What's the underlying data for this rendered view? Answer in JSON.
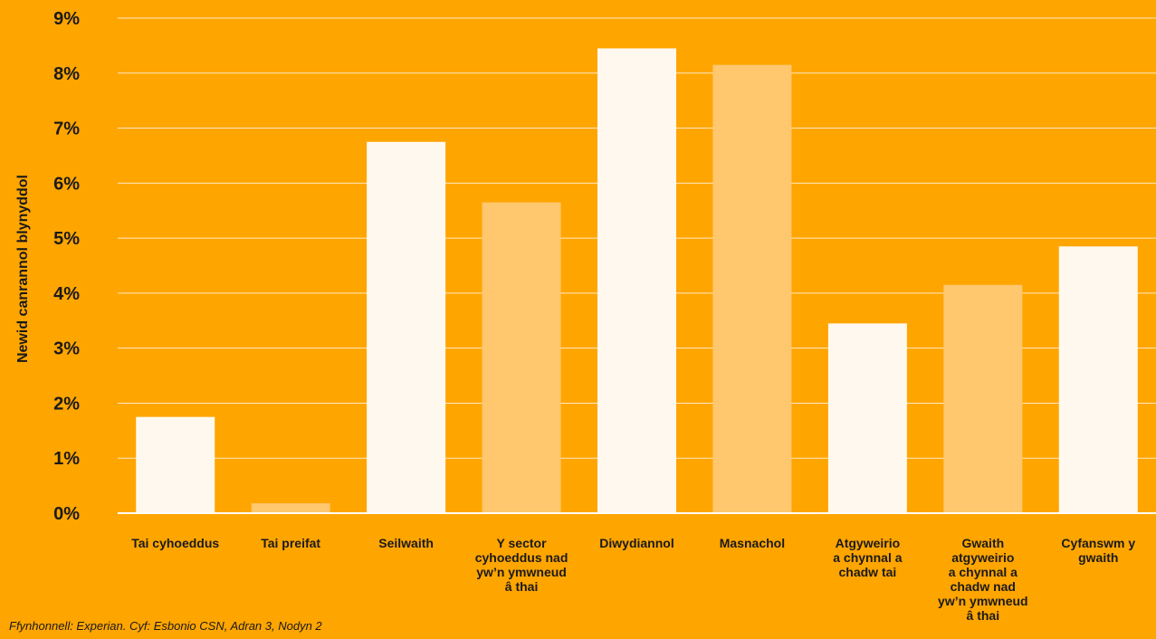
{
  "chart_data": {
    "type": "bar",
    "ylabel": "Newid canrannol blynyddol",
    "ylim": [
      0,
      9
    ],
    "yticks": [
      "0%",
      "1%",
      "2%",
      "3%",
      "4%",
      "5%",
      "6%",
      "7%",
      "8%",
      "9%"
    ],
    "grid": true,
    "categories": [
      [
        "Tai cyhoeddus"
      ],
      [
        "Tai preifat"
      ],
      [
        "Seilwaith"
      ],
      [
        "Y sector",
        "cyhoeddus nad",
        "yw’n ymwneud",
        "â thai"
      ],
      [
        "Diwydiannol"
      ],
      [
        "Masnachol"
      ],
      [
        "Atgyweirio",
        "a chynnal a",
        "chadw tai"
      ],
      [
        "Gwaith",
        "atgyweirio",
        "a chynnal a",
        "chadw nad",
        "yw’n ymwneud",
        "â thai"
      ],
      [
        "Cyfanswm y",
        "gwaith"
      ]
    ],
    "values": [
      1.75,
      0.18,
      6.75,
      5.65,
      8.45,
      8.15,
      3.45,
      4.15,
      4.85
    ],
    "bar_colors": [
      "#FFF8EE",
      "#FFC76E",
      "#FFF8EE",
      "#FFC76E",
      "#FFF8EE",
      "#FFC76E",
      "#FFF8EE",
      "#FFC76E",
      "#FFF8EE"
    ]
  },
  "source": "Ffynhonnell: Experian. Cyf: Esbonio CSN, Adran 3, Nodyn 2",
  "colors": {
    "background": "#FFA500",
    "gridline": "#FFE9C4",
    "baseline": "#FFFFFF",
    "text": "#1a1a1a"
  }
}
